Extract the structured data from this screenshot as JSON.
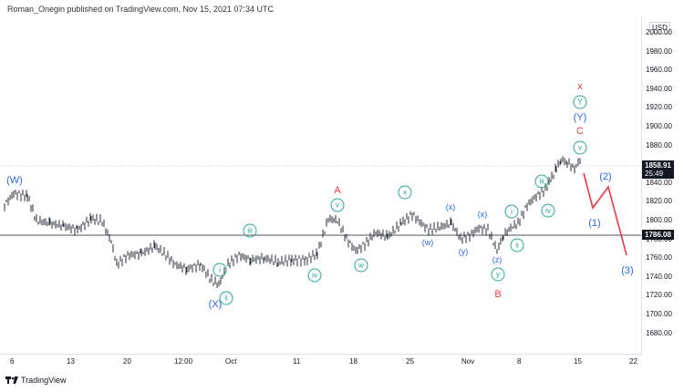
{
  "header": {
    "title": "Roman_Onegin published on TradingView.com, Nov 15, 2021 07:34 UTC"
  },
  "axis": {
    "currency": "USD",
    "y_ticks": [
      "2000.00",
      "1980.00",
      "1960.00",
      "1940.00",
      "1920.00",
      "1900.00",
      "1880.00",
      "1860.00",
      "1840.00",
      "1820.00",
      "1800.00",
      "1780.00",
      "1760.00",
      "1740.00",
      "1720.00",
      "1700.00",
      "1680.00"
    ],
    "x_ticks": [
      "6",
      "13",
      "20",
      "12:00",
      "Oct",
      "11",
      "18",
      "25",
      "Nov",
      "8",
      "15",
      "22"
    ]
  },
  "price_tags": {
    "current": "1858.91",
    "countdown": "25:49",
    "level": "1786.08"
  },
  "wave_labels": {
    "W": "(W)",
    "X": "(X)",
    "Y": "(Y)",
    "A": "A",
    "B": "B",
    "C": "C",
    "x_top": "x",
    "w_small": "(w)",
    "x_small1": "(x)",
    "y_small": "(y)",
    "x_small2": "(x)",
    "z_small": "(z)",
    "p1": "(1)",
    "p2": "(2)",
    "p3": "(3)"
  },
  "circle_labels": {
    "i1": "i",
    "ii1": "ii",
    "iii1": "iii",
    "iv1": "iv",
    "v1": "v",
    "w": "w",
    "x": "x",
    "y": "y",
    "i2": "i",
    "ii2": "ii",
    "iii2": "iii",
    "iv2": "iv",
    "v2": "v",
    "Y": "Y"
  },
  "footer": {
    "brand": "TradingView"
  },
  "colors": {
    "wave_blue": "#2962ff",
    "wave_red": "#f23645",
    "circle_green": "#22ab94",
    "bars": "#131722"
  }
}
